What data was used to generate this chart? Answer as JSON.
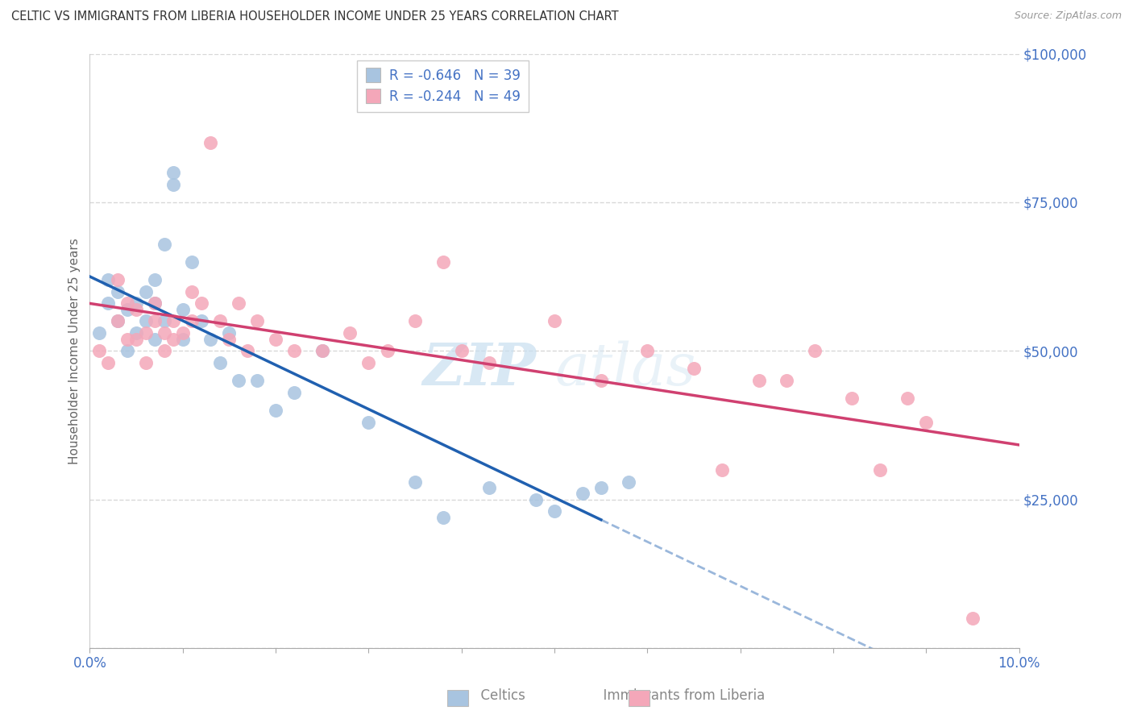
{
  "title": "CELTIC VS IMMIGRANTS FROM LIBERIA HOUSEHOLDER INCOME UNDER 25 YEARS CORRELATION CHART",
  "source": "Source: ZipAtlas.com",
  "xlabel_celtics": "Celtics",
  "xlabel_liberia": "Immigrants from Liberia",
  "ylabel": "Householder Income Under 25 years",
  "xlim": [
    0.0,
    0.1
  ],
  "ylim": [
    0,
    100000
  ],
  "yticks": [
    0,
    25000,
    50000,
    75000,
    100000
  ],
  "ytick_labels": [
    "",
    "$25,000",
    "$50,000",
    "$75,000",
    "$100,000"
  ],
  "r_celtics": -0.646,
  "n_celtics": 39,
  "r_liberia": -0.244,
  "n_liberia": 49,
  "color_celtics": "#a8c4e0",
  "color_liberia": "#f4a7b9",
  "line_color_celtics": "#2060b0",
  "line_color_liberia": "#d04070",
  "watermark_zip": "ZIP",
  "watermark_atlas": "atlas",
  "background_color": "#ffffff",
  "grid_color": "#d8d8d8",
  "celtics_x": [
    0.001,
    0.002,
    0.002,
    0.003,
    0.003,
    0.004,
    0.004,
    0.005,
    0.005,
    0.006,
    0.006,
    0.007,
    0.007,
    0.007,
    0.008,
    0.008,
    0.009,
    0.009,
    0.01,
    0.01,
    0.011,
    0.012,
    0.013,
    0.014,
    0.015,
    0.016,
    0.018,
    0.02,
    0.022,
    0.025,
    0.03,
    0.035,
    0.038,
    0.043,
    0.048,
    0.05,
    0.053,
    0.055,
    0.058
  ],
  "celtics_y": [
    53000,
    58000,
    62000,
    60000,
    55000,
    57000,
    50000,
    58000,
    53000,
    55000,
    60000,
    62000,
    58000,
    52000,
    68000,
    55000,
    78000,
    80000,
    52000,
    57000,
    65000,
    55000,
    52000,
    48000,
    53000,
    45000,
    45000,
    40000,
    43000,
    50000,
    38000,
    28000,
    22000,
    27000,
    25000,
    23000,
    26000,
    27000,
    28000
  ],
  "liberia_x": [
    0.001,
    0.002,
    0.003,
    0.003,
    0.004,
    0.004,
    0.005,
    0.005,
    0.006,
    0.006,
    0.007,
    0.007,
    0.008,
    0.008,
    0.009,
    0.009,
    0.01,
    0.011,
    0.011,
    0.012,
    0.013,
    0.014,
    0.015,
    0.016,
    0.017,
    0.018,
    0.02,
    0.022,
    0.025,
    0.028,
    0.03,
    0.032,
    0.035,
    0.038,
    0.04,
    0.043,
    0.05,
    0.055,
    0.06,
    0.065,
    0.068,
    0.072,
    0.075,
    0.078,
    0.082,
    0.085,
    0.088,
    0.09,
    0.095
  ],
  "liberia_y": [
    50000,
    48000,
    55000,
    62000,
    52000,
    58000,
    52000,
    57000,
    53000,
    48000,
    55000,
    58000,
    50000,
    53000,
    52000,
    55000,
    53000,
    60000,
    55000,
    58000,
    85000,
    55000,
    52000,
    58000,
    50000,
    55000,
    52000,
    50000,
    50000,
    53000,
    48000,
    50000,
    55000,
    65000,
    50000,
    48000,
    55000,
    45000,
    50000,
    47000,
    30000,
    45000,
    45000,
    50000,
    42000,
    30000,
    42000,
    38000,
    5000
  ]
}
